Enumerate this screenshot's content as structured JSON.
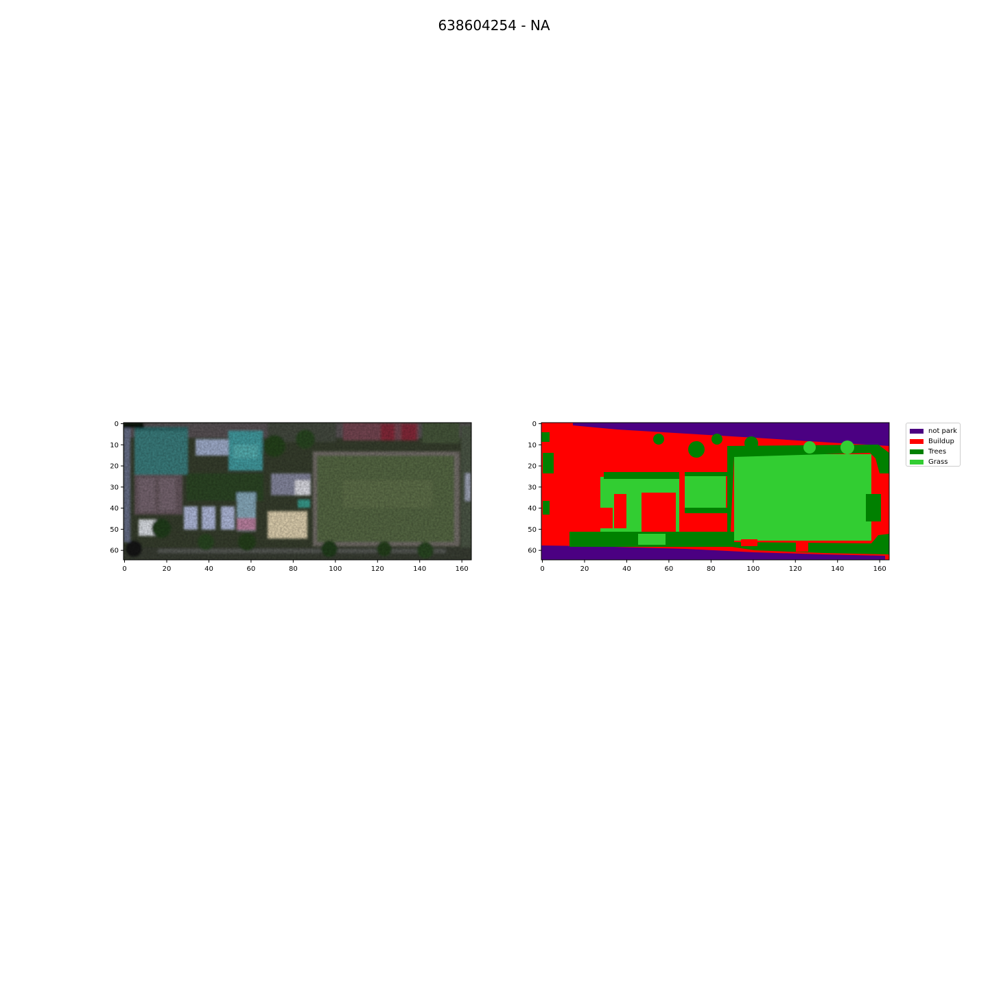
{
  "figure": {
    "title": "638604254 - NA"
  },
  "chart_data": [
    {
      "type": "heatmap",
      "panel": "left",
      "content": "rgb satellite image",
      "xticks": [
        0,
        20,
        40,
        60,
        80,
        100,
        120,
        140,
        160
      ],
      "yticks": [
        0,
        10,
        20,
        30,
        40,
        50,
        60
      ],
      "xlim": [
        -0.5,
        164.5
      ],
      "ylim": [
        64.5,
        -0.5
      ]
    },
    {
      "type": "heatmap",
      "panel": "right",
      "content": "land cover classification",
      "xticks": [
        0,
        20,
        40,
        60,
        80,
        100,
        120,
        140,
        160
      ],
      "yticks": [
        0,
        10,
        20,
        30,
        40,
        50,
        60
      ],
      "xlim": [
        -0.5,
        164.5
      ],
      "ylim": [
        64.5,
        -0.5
      ],
      "legend": {
        "position": "upper-left-outside",
        "entries": [
          {
            "label": "not park",
            "color": "#4b0082"
          },
          {
            "label": "Buildup",
            "color": "#ff0000"
          },
          {
            "label": "Trees",
            "color": "#008000"
          },
          {
            "label": "Grass",
            "color": "#32cd32"
          }
        ]
      }
    }
  ]
}
